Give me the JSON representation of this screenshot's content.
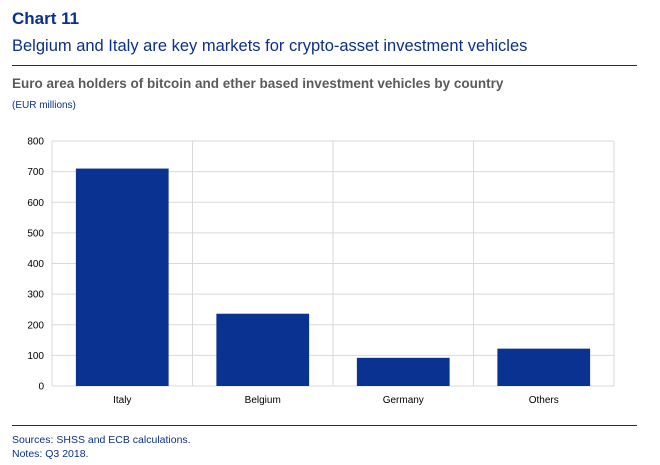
{
  "header": {
    "chart_number": "Chart 11",
    "headline": "Belgium and Italy are key markets for crypto-asset investment vehicles",
    "subtitle": "Euro area holders of bitcoin and ether based investment vehicles by country",
    "unit": "(EUR millions)"
  },
  "footer": {
    "sources": "Sources: SHSS and ECB calculations.",
    "notes": "Notes: Q3 2018."
  },
  "colors": {
    "bar": "#0a3291",
    "brand": "#0b2f8c",
    "grid": "#d9d9d9"
  },
  "chart_data": {
    "type": "bar",
    "title": "Euro area holders of bitcoin and ether based investment vehicles by country",
    "ylabel": "(EUR millions)",
    "xlabel": "",
    "categories": [
      "Italy",
      "Belgium",
      "Germany",
      "Others"
    ],
    "values": [
      710,
      236,
      92,
      122
    ],
    "ylim": [
      0,
      800
    ],
    "yticks": [
      "0",
      "100",
      "200",
      "300",
      "400",
      "500",
      "600",
      "700",
      "800"
    ],
    "grid": true,
    "legend": "none"
  }
}
